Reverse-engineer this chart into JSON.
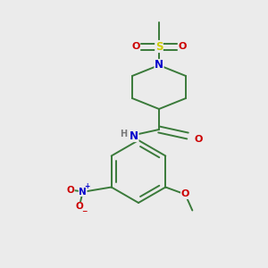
{
  "background_color": "#ebebeb",
  "atom_colors": {
    "C": "#000000",
    "N": "#0000cc",
    "O": "#cc0000",
    "S": "#cccc00",
    "H": "#777777"
  },
  "bond_color": "#3a7a3a",
  "figsize": [
    3.0,
    3.0
  ],
  "dpi": 100,
  "bond_lw": 1.4,
  "font_size_atom": 7.5,
  "font_size_small": 6.5
}
